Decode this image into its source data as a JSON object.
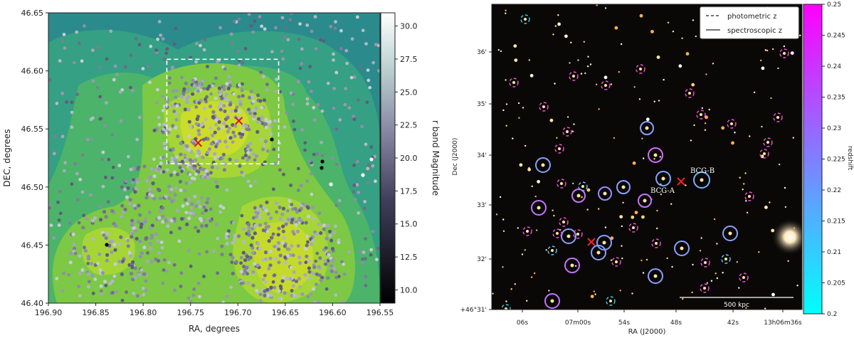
{
  "chart_data": [
    {
      "type": "scatter",
      "panel": "left",
      "xlabel": "RA, degrees",
      "ylabel": "DEC, degrees",
      "xlim": [
        196.9,
        196.55
      ],
      "ylim": [
        46.4,
        46.65
      ],
      "xticks": [
        "196.90",
        "196.85",
        "196.80",
        "196.75",
        "196.70",
        "196.65",
        "196.60",
        "196.55"
      ],
      "xtick_values": [
        196.9,
        196.85,
        196.8,
        196.75,
        196.7,
        196.65,
        196.6,
        196.55
      ],
      "yticks": [
        "46.40",
        "46.45",
        "46.50",
        "46.55",
        "46.60",
        "46.65"
      ],
      "ytick_values": [
        46.4,
        46.45,
        46.5,
        46.55,
        46.6,
        46.65
      ],
      "background": "galaxy density contours",
      "points_color_by": "r band Magnitude",
      "bcg_markers": [
        {
          "ra": 196.742,
          "dec": 46.538
        },
        {
          "ra": 196.699,
          "dec": 46.557
        }
      ],
      "zoom_box": {
        "ra": [
          196.775,
          196.657
        ],
        "dec": [
          46.52,
          46.61
        ]
      },
      "colorbar": {
        "label": "r band Magnitude",
        "range": [
          9.0,
          31.0
        ],
        "ticks": [
          "10.0",
          "12.5",
          "15.0",
          "17.5",
          "20.0",
          "22.5",
          "25.0",
          "27.5",
          "30.0"
        ],
        "tick_values": [
          10.0,
          12.5,
          15.0,
          17.5,
          20.0,
          22.5,
          25.0,
          27.5,
          30.0
        ]
      }
    },
    {
      "type": "scatter",
      "panel": "right",
      "xlabel": "RA (J2000)",
      "ylabel": "Dec (J2000)",
      "xticks": [
        "06s",
        "07m00s",
        "54s",
        "48s",
        "42s",
        "13h06m36s"
      ],
      "yticks": [
        "+46°31'",
        "32'",
        "33'",
        "34'",
        "35'",
        "36'"
      ],
      "background": "optical color image",
      "legend": [
        "photometric z",
        "spectroscopic z"
      ],
      "legend_location": "top-right",
      "annotations": [
        "BCG-A",
        "BCG-B"
      ],
      "scale_bar": "500 kpc",
      "colorbar": {
        "label": "redshift",
        "range": [
          0.2,
          0.25
        ],
        "ticks": [
          "0.2",
          "0.205",
          "0.21",
          "0.215",
          "0.22",
          "0.225",
          "0.23",
          "0.235",
          "0.24",
          "0.245",
          "0.25"
        ],
        "tick_values": [
          0.2,
          0.205,
          0.21,
          0.215,
          0.22,
          0.225,
          0.23,
          0.235,
          0.24,
          0.245,
          0.25
        ]
      }
    }
  ]
}
